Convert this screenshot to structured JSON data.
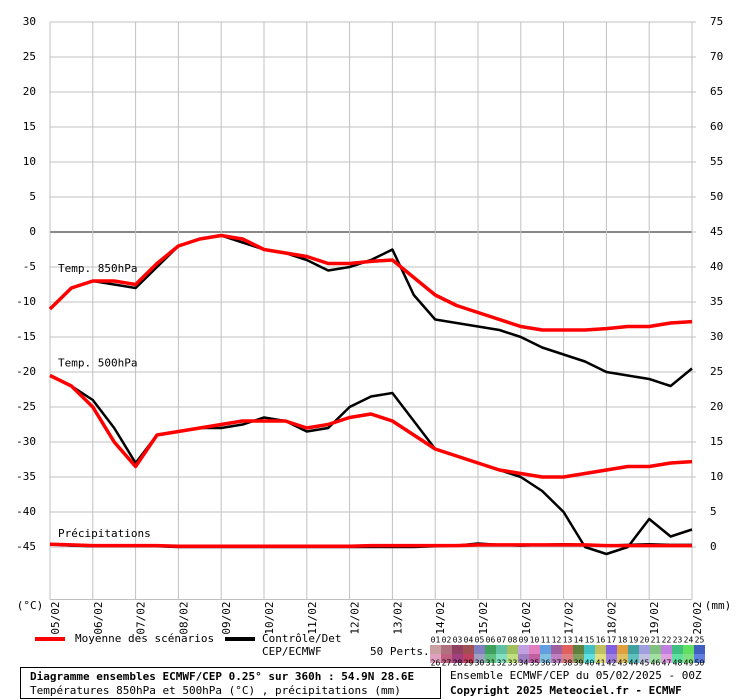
{
  "chart_data": {
    "type": "line",
    "x": [
      0,
      12,
      24,
      36,
      48,
      60,
      72,
      84,
      96,
      108,
      120,
      132,
      144,
      156,
      168,
      180,
      192,
      204,
      216,
      228,
      240,
      252,
      264,
      276,
      288,
      300,
      312,
      324,
      336,
      348,
      360
    ],
    "xlim": [
      0,
      360
    ],
    "xticks": [
      {
        "value": 0,
        "label": "05/02"
      },
      {
        "value": 24,
        "label": "06/02"
      },
      {
        "value": 48,
        "label": "07/02"
      },
      {
        "value": 72,
        "label": "08/02"
      },
      {
        "value": 96,
        "label": "09/02"
      },
      {
        "value": 120,
        "label": "10/02"
      },
      {
        "value": 144,
        "label": "11/02"
      },
      {
        "value": 168,
        "label": "12/02"
      },
      {
        "value": 192,
        "label": "13/02"
      },
      {
        "value": 216,
        "label": "14/02"
      },
      {
        "value": 240,
        "label": "15/02"
      },
      {
        "value": 264,
        "label": "16/02"
      },
      {
        "value": 288,
        "label": "17/02"
      },
      {
        "value": 312,
        "label": "18/02"
      },
      {
        "value": 336,
        "label": "19/02"
      },
      {
        "value": 360,
        "label": "20/02"
      }
    ],
    "ylim": [
      -52.5,
      30
    ],
    "yticks": [
      -45,
      -40,
      -35,
      -30,
      -25,
      -20,
      -15,
      -10,
      -5,
      0,
      5,
      10,
      15,
      20,
      25,
      30
    ],
    "y2lim": [
      -7.5,
      75
    ],
    "y2ticks": [
      0,
      5,
      10,
      15,
      20,
      25,
      30,
      35,
      40,
      45,
      50,
      55,
      60,
      65,
      70,
      75
    ],
    "ylabel": "(°C)",
    "y2label": "(mm)",
    "grid": true,
    "annotations": [
      "Temp. 850hPa",
      "Temp. 500hPa",
      "Précipitations"
    ],
    "series": [
      {
        "name": "Moyenne des scénarios",
        "color": "#ff0000",
        "values": [
          -11,
          -8,
          -7,
          -7,
          -7.5,
          -4.5,
          -2,
          -1,
          -0.5,
          -1,
          -2.5,
          -3,
          -3.5,
          -4.5,
          -4.5,
          -4.2,
          -4,
          -6.5,
          -9,
          -10.5,
          -11.5,
          -12.5,
          -13.5,
          -14,
          -14,
          -14,
          -13.8,
          -13.5,
          -13.5,
          -13,
          -12.8
        ]
      },
      {
        "name": "Contrôle/Det CEP/ECMWF",
        "color": "#000000",
        "values": [
          -11,
          -8,
          -7,
          -7.5,
          -8,
          -5,
          -2,
          -1,
          -0.5,
          -1.5,
          -2.5,
          -3,
          -4,
          -5.5,
          -5,
          -4,
          -2.5,
          -9,
          -12.5,
          -13,
          -13.5,
          -14,
          -15,
          -16.5,
          -17.5,
          -18.5,
          -20,
          -20.5,
          -21,
          -22,
          -19.5
        ]
      },
      {
        "name": "Moyenne des scénarios",
        "color": "#ff0000",
        "values": [
          -20.5,
          -22,
          -25,
          -30,
          -33.5,
          -29,
          -28.5,
          -28,
          -27.5,
          -27,
          -27,
          -27,
          -28,
          -27.5,
          -26.5,
          -26,
          -27,
          -29,
          -31,
          -32,
          -33,
          -34,
          -34.5,
          -35,
          -35,
          -34.5,
          -34,
          -33.5,
          -33.5,
          -33,
          -32.8
        ]
      },
      {
        "name": "Contrôle/Det CEP/ECMWF",
        "color": "#000000",
        "values": [
          -20.5,
          -22,
          -24,
          -28,
          -33,
          -29,
          -28.5,
          -28,
          -28,
          -27.5,
          -26.5,
          -27,
          -28.5,
          -28,
          -25,
          -23.5,
          -23,
          -27,
          -31,
          -32,
          -33,
          -34,
          -35,
          -37,
          -40,
          -45,
          -46,
          -45,
          -41,
          -43.5,
          -42.5
        ]
      },
      {
        "name": "Moyenne des scénarios",
        "color": "#ff0000",
        "axis": "y2",
        "values": [
          0.4,
          0.3,
          0.2,
          0.2,
          0.2,
          0.2,
          0.1,
          0.1,
          0.1,
          0.1,
          0.1,
          0.1,
          0.1,
          0.1,
          0.1,
          0.2,
          0.2,
          0.2,
          0.2,
          0.2,
          0.3,
          0.3,
          0.3,
          0.3,
          0.3,
          0.3,
          0.2,
          0.2,
          0.2,
          0.2,
          0.2
        ]
      },
      {
        "name": "Contrôle/Det CEP/ECMWF",
        "color": "#000000",
        "axis": "y2",
        "values": [
          0.4,
          0.2,
          0.1,
          0.1,
          0.1,
          0.1,
          0,
          0,
          0,
          0,
          0,
          0,
          0,
          0,
          0,
          0,
          0,
          0,
          0.1,
          0.2,
          0.5,
          0.3,
          0.2,
          0.3,
          0.4,
          0.3,
          0.2,
          0.3,
          0.4,
          0.3,
          0.3
        ]
      }
    ],
    "members_label": "50 Perts.",
    "members": [
      {
        "label": "01",
        "color": "#c8a0a0"
      },
      {
        "label": "02",
        "color": "#b07080"
      },
      {
        "label": "03",
        "color": "#904060"
      },
      {
        "label": "04",
        "color": "#a05050"
      },
      {
        "label": "05",
        "color": "#8080c0"
      },
      {
        "label": "06",
        "color": "#40a060"
      },
      {
        "label": "07",
        "color": "#60c0a0"
      },
      {
        "label": "08",
        "color": "#a0c060"
      },
      {
        "label": "09",
        "color": "#c0a0e0"
      },
      {
        "label": "10",
        "color": "#e080c0"
      },
      {
        "label": "11",
        "color": "#60a0e0"
      },
      {
        "label": "12",
        "color": "#a060a0"
      },
      {
        "label": "13",
        "color": "#e06060"
      },
      {
        "label": "14",
        "color": "#608040"
      },
      {
        "label": "15",
        "color": "#40c0c0"
      },
      {
        "label": "16",
        "color": "#c0c060"
      },
      {
        "label": "17",
        "color": "#8060e0"
      },
      {
        "label": "18",
        "color": "#e0a040"
      },
      {
        "label": "19",
        "color": "#40a0a0"
      },
      {
        "label": "20",
        "color": "#a0a0e0"
      },
      {
        "label": "21",
        "color": "#80c080"
      },
      {
        "label": "22",
        "color": "#c080e0"
      },
      {
        "label": "23",
        "color": "#40c080"
      },
      {
        "label": "24",
        "color": "#60e060"
      },
      {
        "label": "25",
        "color": "#4060c0"
      },
      {
        "label": "26",
        "color": "#e0a0c0"
      },
      {
        "label": "27",
        "color": "#c06080"
      },
      {
        "label": "28",
        "color": "#a04080"
      },
      {
        "label": "29",
        "color": "#c04060"
      },
      {
        "label": "30",
        "color": "#a0a0c0"
      },
      {
        "label": "31",
        "color": "#60c080"
      },
      {
        "label": "32",
        "color": "#80e0c0"
      },
      {
        "label": "33",
        "color": "#c0e080"
      },
      {
        "label": "34",
        "color": "#a080c0"
      },
      {
        "label": "35",
        "color": "#c060a0"
      },
      {
        "label": "36",
        "color": "#80c0e0"
      },
      {
        "label": "37",
        "color": "#c080c0"
      },
      {
        "label": "38",
        "color": "#e08080"
      },
      {
        "label": "39",
        "color": "#80a060"
      },
      {
        "label": "40",
        "color": "#60e0e0"
      },
      {
        "label": "41",
        "color": "#e0e080"
      },
      {
        "label": "42",
        "color": "#a080e0"
      },
      {
        "label": "43",
        "color": "#e0c060"
      },
      {
        "label": "44",
        "color": "#60c0c0"
      },
      {
        "label": "45",
        "color": "#c0c0e0"
      },
      {
        "label": "46",
        "color": "#a0e0a0"
      },
      {
        "label": "47",
        "color": "#e0a0e0"
      },
      {
        "label": "48",
        "color": "#60e0a0"
      },
      {
        "label": "49",
        "color": "#80e080"
      },
      {
        "label": "50",
        "color": "#6080e0"
      }
    ]
  },
  "footer": {
    "title": "Diagramme ensembles ECMWF/CEP 0.25° sur 360h : 54.9N 28.6E",
    "subtitle": "Températures 850hPa et 500hPa (°C) , précipitations (mm)",
    "run": "Ensemble ECMWF/CEP du 05/02/2025 - 00Z",
    "copyright": "Copyright 2025 Meteociel.fr - ECMWF"
  }
}
